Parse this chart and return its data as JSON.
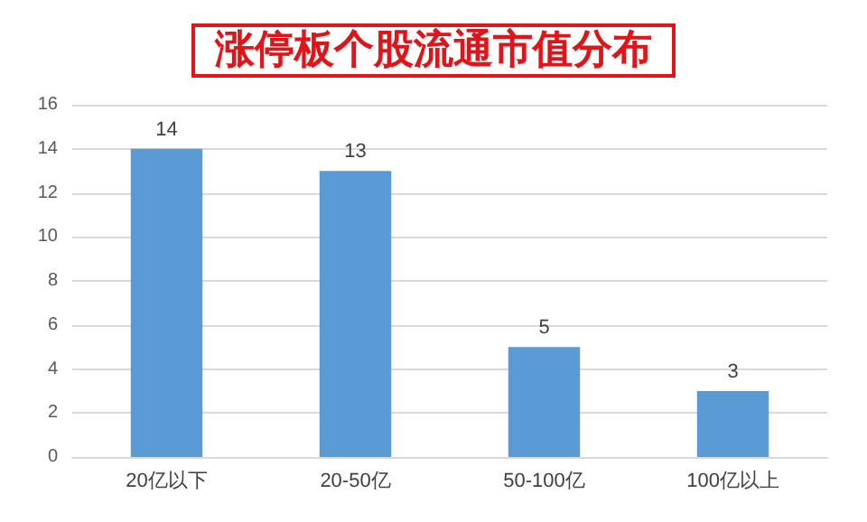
{
  "chart_data": {
    "type": "bar",
    "title": "涨停板个股流通市值分布",
    "categories": [
      "20亿以下",
      "20-50亿",
      "50-100亿",
      "100亿以上"
    ],
    "values": [
      14,
      13,
      5,
      3
    ],
    "color": "#5b9bd5",
    "ylim": [
      0,
      16
    ],
    "yticks": [
      0,
      2,
      4,
      6,
      8,
      10,
      12,
      14,
      16
    ],
    "grid": "y",
    "data_labels": true
  }
}
